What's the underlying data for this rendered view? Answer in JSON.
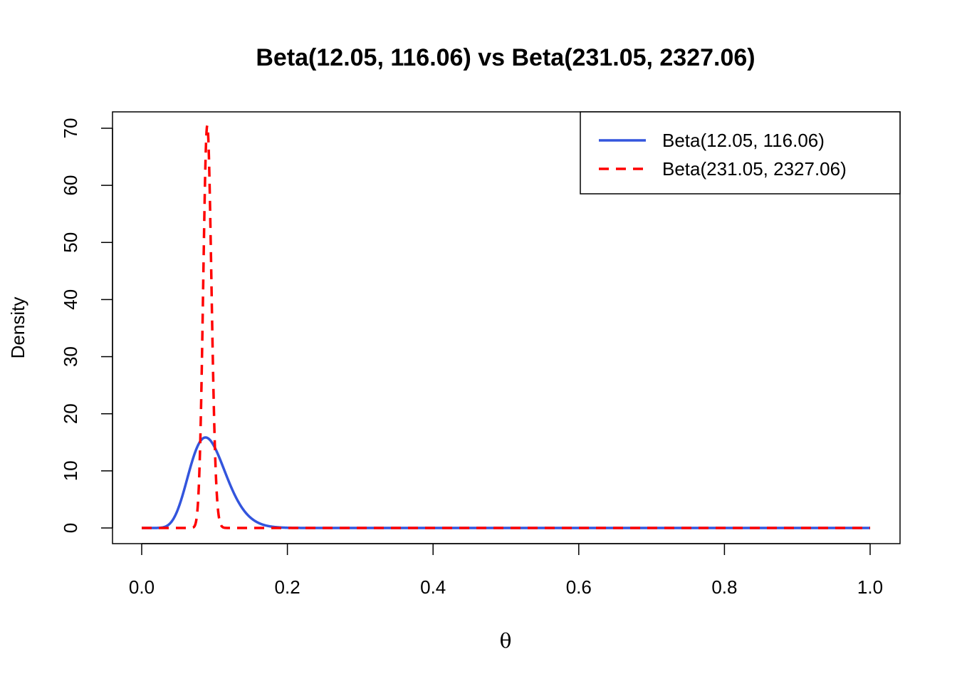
{
  "chart_data": {
    "type": "line",
    "title": "Beta(12.05, 116.06) vs Beta(231.05, 2327.06)",
    "xlabel": "θ",
    "ylabel": "Density",
    "xlim": [
      0,
      1
    ],
    "ylim": [
      0,
      70
    ],
    "x_ticks": [
      "0.0",
      "0.2",
      "0.4",
      "0.6",
      "0.8",
      "1.0"
    ],
    "y_ticks": [
      "0",
      "10",
      "20",
      "30",
      "40",
      "50",
      "60",
      "70"
    ],
    "grid": false,
    "legend_position": "top-right",
    "series": [
      {
        "name": "Beta(12.05, 116.06)",
        "distribution": "beta",
        "alpha": 12.05,
        "beta": 116.06,
        "color": "#3355DD",
        "line_style": "solid"
      },
      {
        "name": "Beta(231.05, 2327.06)",
        "distribution": "beta",
        "alpha": 231.05,
        "beta": 2327.06,
        "color": "#FF0000",
        "line_style": "dashed"
      }
    ]
  }
}
